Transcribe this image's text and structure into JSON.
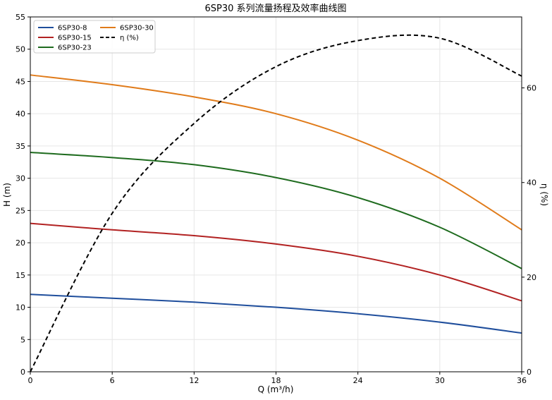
{
  "chart_data": {
    "type": "line",
    "title": "6SP30 系列流量扬程及效率曲线图",
    "xlabel": "Q (m³/h)",
    "ylabel": "H (m)",
    "y2label": "η (%)",
    "xlim": [
      0,
      36
    ],
    "ylim": [
      0,
      55
    ],
    "y2lim": [
      0,
      75
    ],
    "xticks": [
      0,
      6,
      12,
      18,
      24,
      30,
      36
    ],
    "yticks": [
      0,
      5,
      10,
      15,
      20,
      25,
      30,
      35,
      40,
      45,
      50,
      55
    ],
    "y2ticks": [
      0,
      20,
      40,
      60
    ],
    "grid": true,
    "legend_position": "top-left",
    "x": [
      0,
      6,
      12,
      18,
      24,
      30,
      36
    ],
    "series": [
      {
        "name": "6SP30-8",
        "axis": "left",
        "color": "#1f4e9c",
        "style": "solid",
        "values": [
          12.0,
          11.4,
          10.8,
          10.0,
          9.0,
          7.7,
          6.0
        ]
      },
      {
        "name": "6SP30-15",
        "axis": "left",
        "color": "#b22222",
        "style": "solid",
        "values": [
          23.0,
          22.0,
          21.1,
          19.8,
          17.9,
          15.0,
          11.0
        ]
      },
      {
        "name": "6SP30-23",
        "axis": "left",
        "color": "#1e6b1e",
        "style": "solid",
        "values": [
          34.0,
          33.2,
          32.1,
          30.1,
          27.0,
          22.4,
          16.0
        ]
      },
      {
        "name": "6SP30-30",
        "axis": "left",
        "color": "#e07b1a",
        "style": "solid",
        "values": [
          46.0,
          44.5,
          42.6,
          40.0,
          35.9,
          30.0,
          22.0
        ]
      },
      {
        "name": "η (%)",
        "axis": "right",
        "color": "#000000",
        "style": "dashed",
        "values": [
          0,
          33.5,
          52.5,
          64.5,
          70.0,
          70.5,
          62.5
        ]
      }
    ]
  }
}
